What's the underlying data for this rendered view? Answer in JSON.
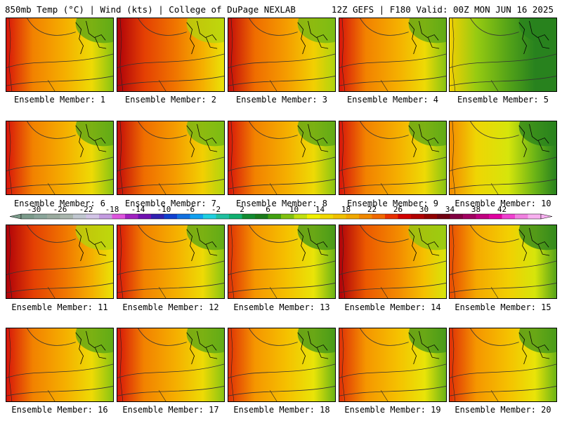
{
  "header": {
    "left": "850mb Temp (°C) | Wind (kts) | College of DuPage NEXLAB",
    "right": "12Z GEFS | F180 Valid: 00Z MON JUN 16 2025"
  },
  "members": [
    {
      "label": "Ensemble Member: 1",
      "warmth": 0.55
    },
    {
      "label": "Ensemble Member: 2",
      "warmth": 0.7
    },
    {
      "label": "Ensemble Member: 3",
      "warmth": 0.6
    },
    {
      "label": "Ensemble Member: 4",
      "warmth": 0.55
    },
    {
      "label": "Ensemble Member: 5",
      "warmth": 0.1
    },
    {
      "label": "Ensemble Member: 6",
      "warmth": 0.55
    },
    {
      "label": "Ensemble Member: 7",
      "warmth": 0.6
    },
    {
      "label": "Ensemble Member: 8",
      "warmth": 0.55
    },
    {
      "label": "Ensemble Member: 9",
      "warmth": 0.55
    },
    {
      "label": "Ensemble Member: 10",
      "warmth": 0.3
    },
    {
      "label": "Ensemble Member: 11",
      "warmth": 0.7
    },
    {
      "label": "Ensemble Member: 12",
      "warmth": 0.55
    },
    {
      "label": "Ensemble Member: 13",
      "warmth": 0.5
    },
    {
      "label": "Ensemble Member: 14",
      "warmth": 0.65
    },
    {
      "label": "Ensemble Member: 15",
      "warmth": 0.45
    },
    {
      "label": "Ensemble Member: 16",
      "warmth": 0.55
    },
    {
      "label": "Ensemble Member: 17",
      "warmth": 0.55
    },
    {
      "label": "Ensemble Member: 18",
      "warmth": 0.5
    },
    {
      "label": "Ensemble Member: 19",
      "warmth": 0.5
    },
    {
      "label": "Ensemble Member: 20",
      "warmth": 0.5
    }
  ],
  "colorbar": {
    "ticks": [
      "-30",
      "-26",
      "-22",
      "-18",
      "-14",
      "-10",
      "-6",
      "-2",
      "2",
      "6",
      "10",
      "14",
      "18",
      "22",
      "26",
      "30",
      "34",
      "38",
      "42"
    ],
    "colors": [
      "#7a9a8a",
      "#8aa59a",
      "#9aab9f",
      "#a9b5ad",
      "#bfc6cf",
      "#d2c4e6",
      "#c39be0",
      "#dd55dd",
      "#a020c0",
      "#7010b0",
      "#3020b0",
      "#1040d0",
      "#1070e0",
      "#10a0f0",
      "#20d0e0",
      "#20c0a0",
      "#10b070",
      "#108a30",
      "#1a7a1a",
      "#40a010",
      "#80c010",
      "#c0e010",
      "#f0f000",
      "#f0d800",
      "#f0c000",
      "#f0a800",
      "#f08800",
      "#f06800",
      "#e83000",
      "#d00000",
      "#b00000",
      "#900000",
      "#700010",
      "#800040",
      "#a00060",
      "#c00080",
      "#e000a0",
      "#f040d0",
      "#f080e0",
      "#f8b0f0"
    ]
  }
}
